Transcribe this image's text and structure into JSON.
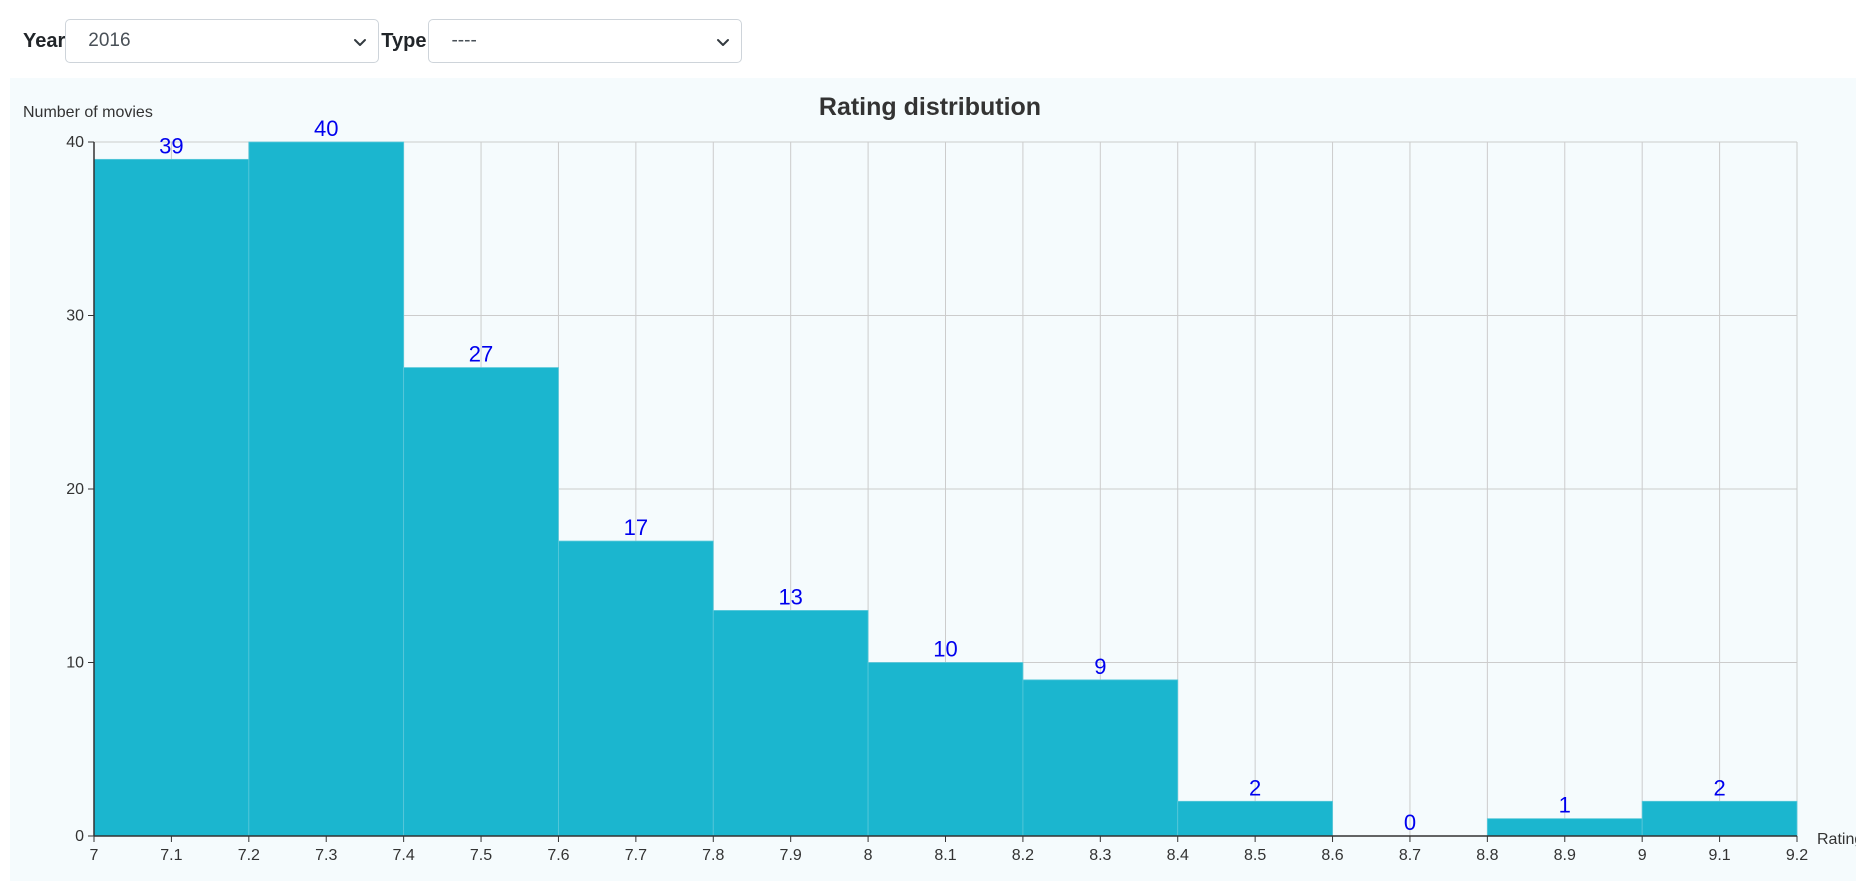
{
  "filters": {
    "year": {
      "label": "Year",
      "selected": "2016"
    },
    "type": {
      "label": "Type",
      "selected": "----"
    }
  },
  "colors": {
    "bar": "#1bb6cf",
    "bar_edge": "#5cc9da",
    "data_label": "#0000ee",
    "grid": "#cccccc",
    "axis": "#333333",
    "panel_bg": "#f5fbfd"
  },
  "chart_data": {
    "type": "bar",
    "title": "Rating distribution",
    "ylabel": "Number of movies",
    "xlabel": "Rating",
    "xlim": [
      7,
      9.2
    ],
    "ylim": [
      0,
      40
    ],
    "yticks": [
      0,
      10,
      20,
      30,
      40
    ],
    "xticks": [
      "7",
      "7.1",
      "7.2",
      "7.3",
      "7.4",
      "7.5",
      "7.6",
      "7.7",
      "7.8",
      "7.9",
      "8",
      "8.1",
      "8.2",
      "8.3",
      "8.4",
      "8.5",
      "8.6",
      "8.7",
      "8.8",
      "8.9",
      "9",
      "9.1",
      "9.2"
    ],
    "bins": [
      {
        "start": 7.0,
        "end": 7.2,
        "value": 39
      },
      {
        "start": 7.2,
        "end": 7.4,
        "value": 40
      },
      {
        "start": 7.4,
        "end": 7.6,
        "value": 27
      },
      {
        "start": 7.6,
        "end": 7.8,
        "value": 17
      },
      {
        "start": 7.8,
        "end": 8.0,
        "value": 13
      },
      {
        "start": 8.0,
        "end": 8.2,
        "value": 10
      },
      {
        "start": 8.2,
        "end": 8.4,
        "value": 9
      },
      {
        "start": 8.4,
        "end": 8.6,
        "value": 2
      },
      {
        "start": 8.6,
        "end": 8.8,
        "value": 0
      },
      {
        "start": 8.8,
        "end": 9.0,
        "value": 1
      },
      {
        "start": 9.0,
        "end": 9.2,
        "value": 2
      }
    ]
  }
}
